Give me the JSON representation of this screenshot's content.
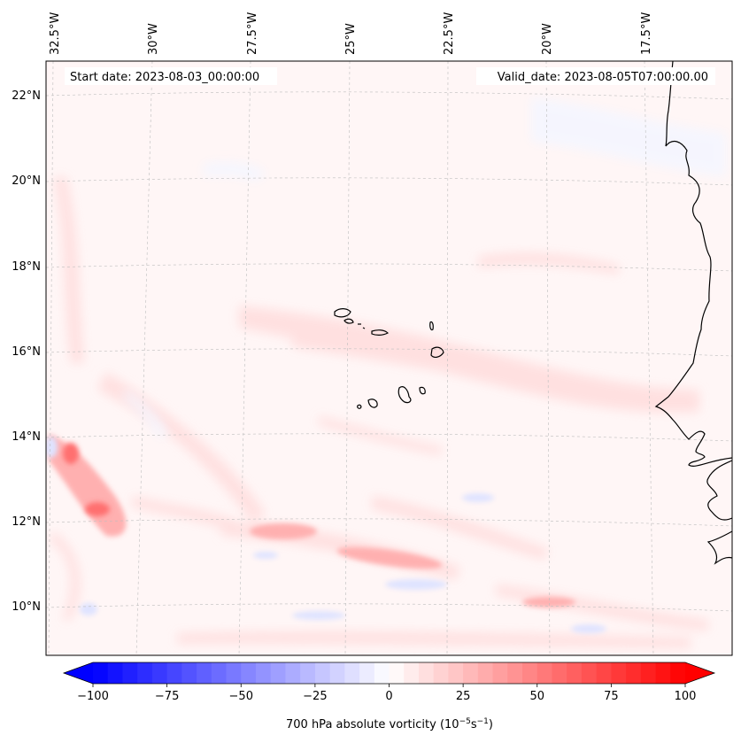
{
  "header": {
    "start_date": "Start date: 2023-08-03_00:00:00",
    "valid_date": "Valid_date: 2023-08-05T07:00:00.00"
  },
  "axes": {
    "lon_labels": [
      "32.5°W",
      "30°W",
      "27.5°W",
      "25°W",
      "22.5°W",
      "20°W",
      "17.5°W"
    ],
    "lat_labels": [
      "22°N",
      "20°N",
      "18°N",
      "16°N",
      "14°N",
      "12°N",
      "10°N"
    ]
  },
  "colorbar": {
    "ticks": [
      "−100",
      "−75",
      "−50",
      "−25",
      "0",
      "25",
      "50",
      "75",
      "100"
    ],
    "label_main": "700 hPa absolute vorticity (10",
    "label_exp1": "−5",
    "label_mid": "s",
    "label_exp2": "−1",
    "label_end": ")",
    "min": -100,
    "max": 100,
    "step": 5,
    "colors": {
      "negative": "#0000ff",
      "neutral": "#ffffff",
      "positive": "#ff0000"
    }
  }
}
